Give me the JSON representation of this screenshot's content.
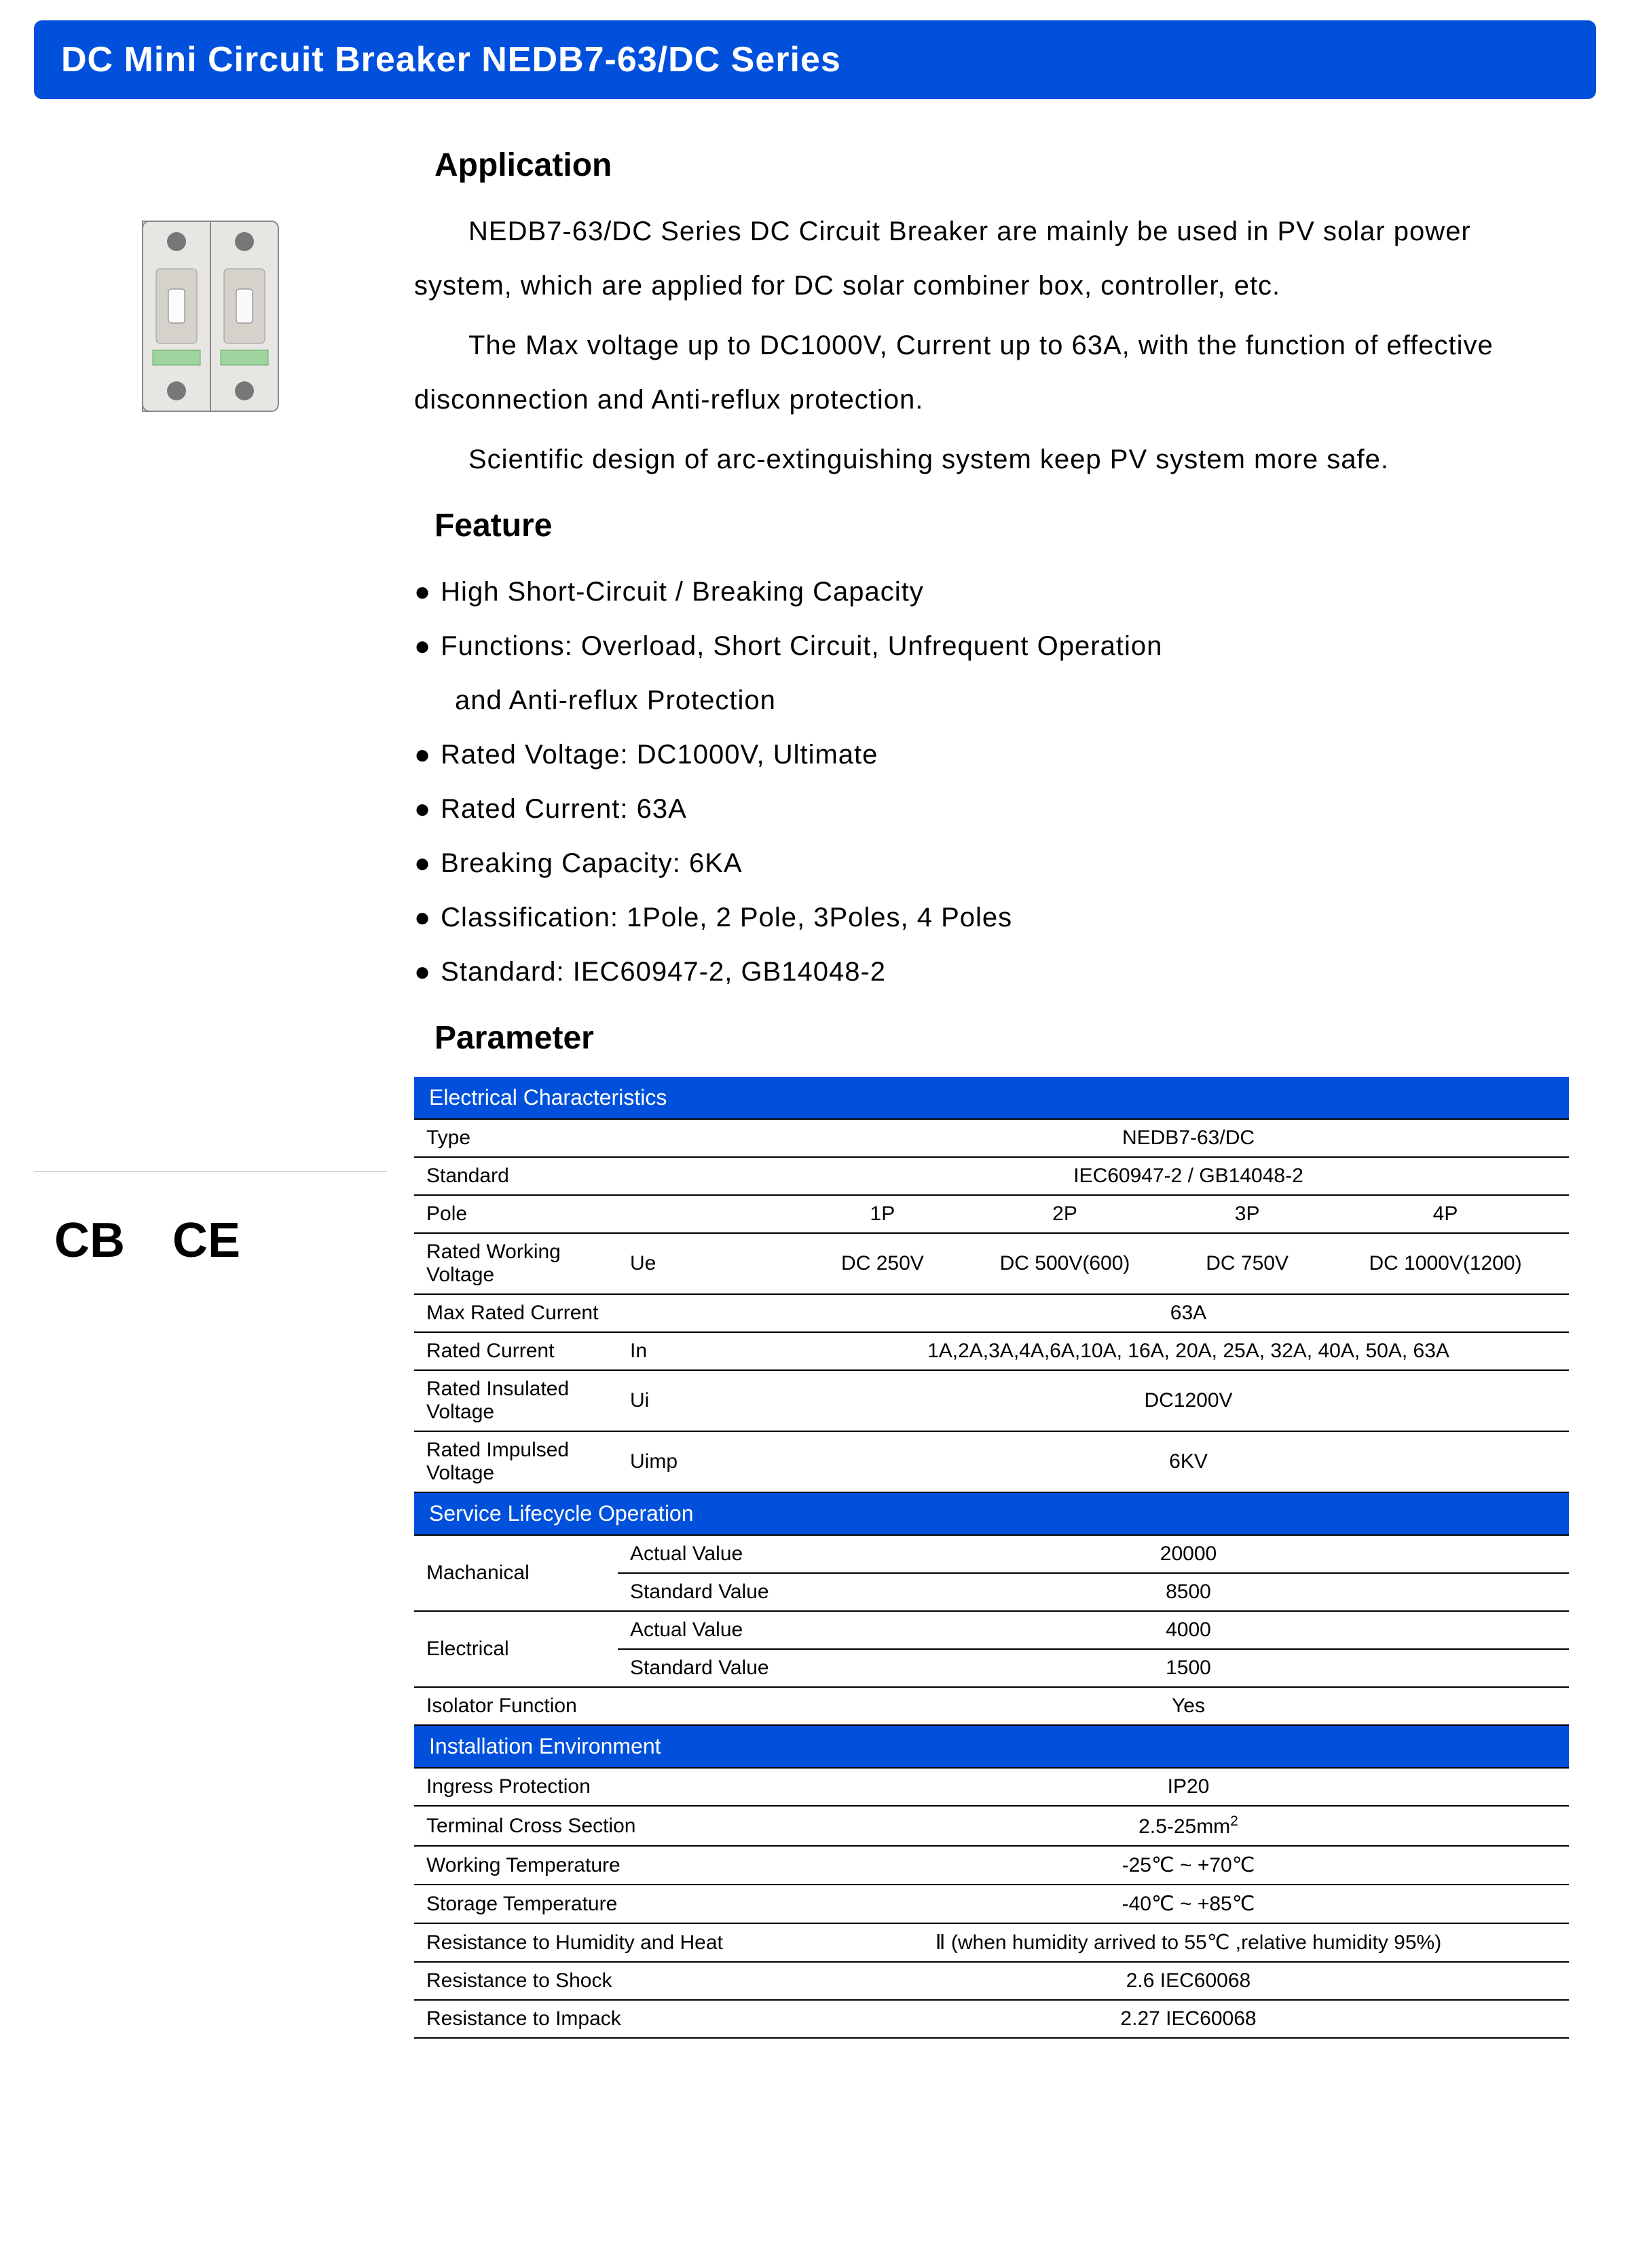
{
  "title": "DC Mini Circuit Breaker NEDB7-63/DC Series",
  "colors": {
    "primary": "#0050dc",
    "text": "#000000",
    "bg": "#ffffff"
  },
  "certifications": [
    "CB",
    "CE"
  ],
  "sections": {
    "application": {
      "heading": "Application",
      "paragraphs": [
        "NEDB7-63/DC Series DC Circuit Breaker are mainly be used in PV solar power system, which are applied for DC solar combiner box, controller, etc.",
        "The Max voltage up to DC1000V, Current up to 63A, with the function of effective disconnection and Anti-reflux protection.",
        "Scientific design of arc-extinguishing system keep PV system more safe."
      ]
    },
    "feature": {
      "heading": "Feature",
      "items": [
        "High Short-Circuit / Breaking Capacity",
        "Functions: Overload, Short Circuit, Unfrequent Operation",
        "and Anti-reflux Protection",
        "Rated Voltage: DC1000V, Ultimate",
        "Rated Current: 63A",
        "Breaking Capacity: 6KA",
        "Classification: 1Pole, 2 Pole, 3Poles, 4 Poles",
        "Standard: IEC60947-2, GB14048-2"
      ],
      "indent_indices": [
        2
      ]
    },
    "parameter": {
      "heading": "Parameter"
    }
  },
  "tables": {
    "electrical": {
      "header": "Electrical Characteristics",
      "rows": [
        {
          "label": "Type",
          "value": "NEDB7-63/DC"
        },
        {
          "label": "Standard",
          "value": "IEC60947-2  / GB14048-2"
        },
        {
          "label": "Pole",
          "cols": [
            "1P",
            "2P",
            "3P",
            "4P"
          ]
        },
        {
          "label": "Rated Working Voltage",
          "sym": "Ue",
          "cols": [
            "DC 250V",
            "DC 500V(600)",
            "DC 750V",
            "DC 1000V(1200)"
          ]
        },
        {
          "label": "Max Rated Current",
          "value": "63A"
        },
        {
          "label": "Rated Current",
          "sym": "In",
          "value": "1A,2A,3A,4A,6A,10A, 16A, 20A, 25A, 32A, 40A, 50A, 63A"
        },
        {
          "label": "Rated Insulated Voltage",
          "sym": "Ui",
          "value": "DC1200V"
        },
        {
          "label": "Rated Impulsed Voltage",
          "sym": "Uimp",
          "value": "6KV"
        }
      ]
    },
    "service": {
      "header": "Service Lifecycle Operation",
      "groups": [
        {
          "label": "Machanical",
          "rows": [
            {
              "sub": "Actual Value",
              "value": "20000"
            },
            {
              "sub": "Standard Value",
              "value": "8500"
            }
          ]
        },
        {
          "label": "Electrical",
          "rows": [
            {
              "sub": "Actual Value",
              "value": "4000"
            },
            {
              "sub": "Standard Value",
              "value": "1500"
            }
          ]
        }
      ],
      "tail": {
        "label": "Isolator Function",
        "value": "Yes"
      }
    },
    "install": {
      "header": "Installation Environment",
      "rows": [
        {
          "label": "Ingress Protection",
          "value": "IP20"
        },
        {
          "label": "Terminal Cross Section",
          "value_html": "2.5-25mm<span class='sup'>2</span>"
        },
        {
          "label": "Working Temperature",
          "value": "-25℃ ~ +70℃"
        },
        {
          "label": "Storage Temperature",
          "value": "-40℃ ~ +85℃"
        },
        {
          "label": "Resistance to Humidity and Heat",
          "value": "Ⅱ (when humidity arrived to 55℃ ,relative humidity 95%)"
        },
        {
          "label": "Resistance to Shock",
          "value": "2.6  IEC60068"
        },
        {
          "label": "Resistance to Impack",
          "value": "2.27  IEC60068"
        }
      ]
    }
  }
}
